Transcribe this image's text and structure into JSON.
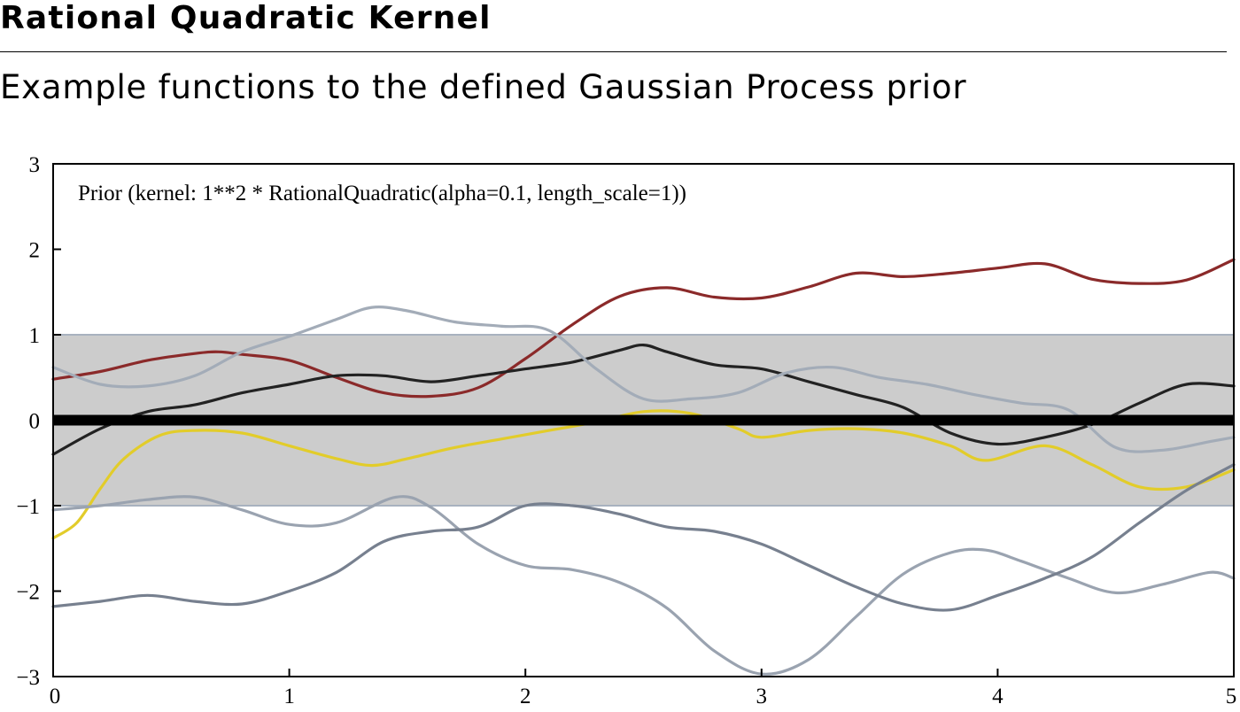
{
  "header": {
    "title": "Rational Quadratic Kernel",
    "subtitle": "Example functions to the defined Gaussian Process prior"
  },
  "chart_data": {
    "type": "line",
    "title": "Prior (kernel:  1**2 * RationalQuadratic(alpha=0.1, length_scale=1))",
    "xlabel": "",
    "ylabel": "",
    "xlim": [
      0,
      5
    ],
    "ylim": [
      -3,
      3
    ],
    "x_ticks": [
      "0",
      "1",
      "2",
      "3",
      "4",
      "5"
    ],
    "y_ticks": [
      "3",
      "2",
      "1",
      "0",
      "−1",
      "−2",
      "−3"
    ],
    "y_tick_values": [
      3,
      2,
      1,
      0,
      -1,
      -2,
      -3
    ],
    "grid": false,
    "band": {
      "lower": -1,
      "upper": 1,
      "color": "#cccccc"
    },
    "mean": {
      "value": 0,
      "color": "#000000"
    },
    "colors": {
      "axis": "#000000",
      "band": "#cccccc",
      "band_edge": "#a8b2bf",
      "mean": "#000000"
    },
    "series": [
      {
        "color": "#8b2a2a",
        "x": [
          0,
          0.2,
          0.4,
          0.6,
          0.7,
          0.8,
          1.0,
          1.2,
          1.4,
          1.6,
          1.8,
          2.0,
          2.2,
          2.4,
          2.6,
          2.8,
          3.0,
          3.2,
          3.4,
          3.6,
          3.8,
          4.0,
          4.2,
          4.4,
          4.6,
          4.8,
          5.0
        ],
        "y": [
          0.48,
          0.57,
          0.7,
          0.78,
          0.8,
          0.77,
          0.7,
          0.5,
          0.32,
          0.28,
          0.38,
          0.72,
          1.12,
          1.45,
          1.55,
          1.44,
          1.43,
          1.56,
          1.72,
          1.68,
          1.72,
          1.78,
          1.83,
          1.65,
          1.6,
          1.64,
          1.88
        ]
      },
      {
        "color": "#222222",
        "x": [
          0,
          0.2,
          0.4,
          0.6,
          0.8,
          1.0,
          1.2,
          1.4,
          1.6,
          1.8,
          2.0,
          2.2,
          2.4,
          2.5,
          2.6,
          2.8,
          3.0,
          3.2,
          3.4,
          3.6,
          3.8,
          4.0,
          4.2,
          4.4,
          4.6,
          4.8,
          5.0
        ],
        "y": [
          -0.4,
          -0.1,
          0.1,
          0.18,
          0.32,
          0.42,
          0.52,
          0.52,
          0.45,
          0.52,
          0.6,
          0.68,
          0.82,
          0.88,
          0.8,
          0.65,
          0.6,
          0.45,
          0.3,
          0.15,
          -0.15,
          -0.28,
          -0.2,
          -0.05,
          0.2,
          0.42,
          0.4
        ]
      },
      {
        "color": "#e2cc2a",
        "x": [
          0,
          0.1,
          0.2,
          0.3,
          0.45,
          0.6,
          0.8,
          1.0,
          1.2,
          1.35,
          1.5,
          1.7,
          1.9,
          2.1,
          2.3,
          2.5,
          2.7,
          2.9,
          3.0,
          3.2,
          3.4,
          3.6,
          3.8,
          3.95,
          4.2,
          4.4,
          4.6,
          4.8,
          5.0
        ],
        "y": [
          -1.38,
          -1.2,
          -0.8,
          -0.45,
          -0.18,
          -0.12,
          -0.15,
          -0.3,
          -0.45,
          -0.53,
          -0.45,
          -0.32,
          -0.22,
          -0.12,
          -0.02,
          0.1,
          0.08,
          -0.1,
          -0.2,
          -0.12,
          -0.1,
          -0.15,
          -0.3,
          -0.47,
          -0.3,
          -0.52,
          -0.78,
          -0.78,
          -0.58
        ]
      },
      {
        "color": "#a3acb8",
        "x": [
          0,
          0.2,
          0.4,
          0.6,
          0.8,
          1.0,
          1.2,
          1.35,
          1.5,
          1.7,
          1.9,
          2.1,
          2.3,
          2.5,
          2.7,
          2.9,
          3.1,
          3.3,
          3.5,
          3.7,
          3.9,
          4.1,
          4.3,
          4.5,
          4.7,
          4.9,
          5.0
        ],
        "y": [
          0.62,
          0.42,
          0.4,
          0.52,
          0.8,
          0.98,
          1.18,
          1.32,
          1.28,
          1.15,
          1.1,
          1.05,
          0.6,
          0.25,
          0.25,
          0.32,
          0.55,
          0.62,
          0.5,
          0.42,
          0.3,
          0.2,
          0.12,
          -0.32,
          -0.35,
          -0.25,
          -0.2
        ]
      },
      {
        "color": "#9aa3b0",
        "x": [
          0,
          0.2,
          0.4,
          0.6,
          0.8,
          1.0,
          1.2,
          1.45,
          1.6,
          1.8,
          2.0,
          2.2,
          2.4,
          2.6,
          2.8,
          3.0,
          3.2,
          3.4,
          3.6,
          3.8,
          3.95,
          4.1,
          4.3,
          4.5,
          4.7,
          4.9,
          5.0
        ],
        "y": [
          -1.05,
          -1.0,
          -0.93,
          -0.9,
          -1.05,
          -1.22,
          -1.2,
          -0.9,
          -1.02,
          -1.45,
          -1.7,
          -1.75,
          -1.9,
          -2.2,
          -2.7,
          -2.97,
          -2.8,
          -2.3,
          -1.8,
          -1.55,
          -1.52,
          -1.65,
          -1.85,
          -2.02,
          -1.92,
          -1.78,
          -1.85
        ]
      },
      {
        "color": "#77808f",
        "x": [
          0,
          0.2,
          0.4,
          0.6,
          0.8,
          1.0,
          1.2,
          1.4,
          1.6,
          1.8,
          2.0,
          2.2,
          2.4,
          2.6,
          2.8,
          3.0,
          3.2,
          3.4,
          3.6,
          3.8,
          4.0,
          4.2,
          4.4,
          4.6,
          4.8,
          5.0
        ],
        "y": [
          -2.18,
          -2.12,
          -2.05,
          -2.12,
          -2.15,
          -2.0,
          -1.78,
          -1.42,
          -1.3,
          -1.25,
          -1.0,
          -1.0,
          -1.1,
          -1.25,
          -1.3,
          -1.45,
          -1.7,
          -1.95,
          -2.15,
          -2.22,
          -2.05,
          -1.85,
          -1.6,
          -1.2,
          -0.82,
          -0.52
        ]
      }
    ]
  }
}
